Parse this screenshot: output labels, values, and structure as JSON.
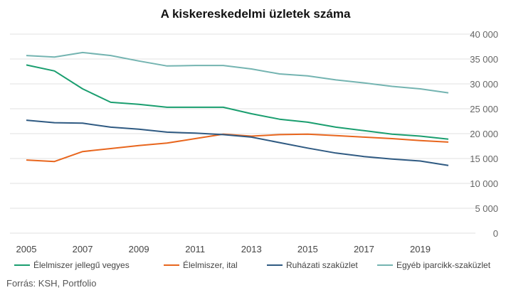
{
  "chart_data": {
    "type": "line",
    "title": "A kiskereskedelmi üzletek száma",
    "x": [
      2005,
      2006,
      2007,
      2008,
      2009,
      2010,
      2011,
      2012,
      2013,
      2014,
      2015,
      2016,
      2017,
      2018,
      2019,
      2020
    ],
    "x_tick_labels": [
      "2005",
      "2007",
      "2009",
      "2011",
      "2013",
      "2015",
      "2017",
      "2019"
    ],
    "y_tick_labels": [
      "0",
      "5 000",
      "10 000",
      "15 000",
      "20 000",
      "25 000",
      "30 000",
      "35 000",
      "40 000"
    ],
    "ylim": [
      0,
      40000
    ],
    "y_axis_side": "right",
    "grid": true,
    "legend_position": "bottom",
    "series": [
      {
        "name": "Élelmiszer jellegű vegyes",
        "color": "#1a9e6f",
        "values": [
          33800,
          32600,
          29000,
          26300,
          25900,
          25300,
          25300,
          25300,
          24000,
          22900,
          22300,
          21300,
          20600,
          19900,
          19500,
          18900
        ]
      },
      {
        "name": "Élelmiszer, ital",
        "color": "#e8661e",
        "values": [
          14700,
          14400,
          16400,
          17000,
          17600,
          18100,
          19000,
          19900,
          19500,
          19800,
          19900,
          19600,
          19300,
          19000,
          18600,
          18300
        ]
      },
      {
        "name": "Ruházati szaküzlet",
        "color": "#2f5a82",
        "values": [
          22700,
          22200,
          22100,
          21300,
          20900,
          20300,
          20100,
          19800,
          19300,
          18200,
          17100,
          16100,
          15400,
          14900,
          14500,
          13600
        ]
      },
      {
        "name": "Egyéb iparcikk-szaküzlet",
        "color": "#74b4b1",
        "values": [
          35700,
          35400,
          36300,
          35700,
          34600,
          33600,
          33700,
          33700,
          33000,
          32000,
          31600,
          30800,
          30200,
          29500,
          29000,
          28200
        ]
      }
    ]
  },
  "source": "Forrás: KSH, Portfolio"
}
